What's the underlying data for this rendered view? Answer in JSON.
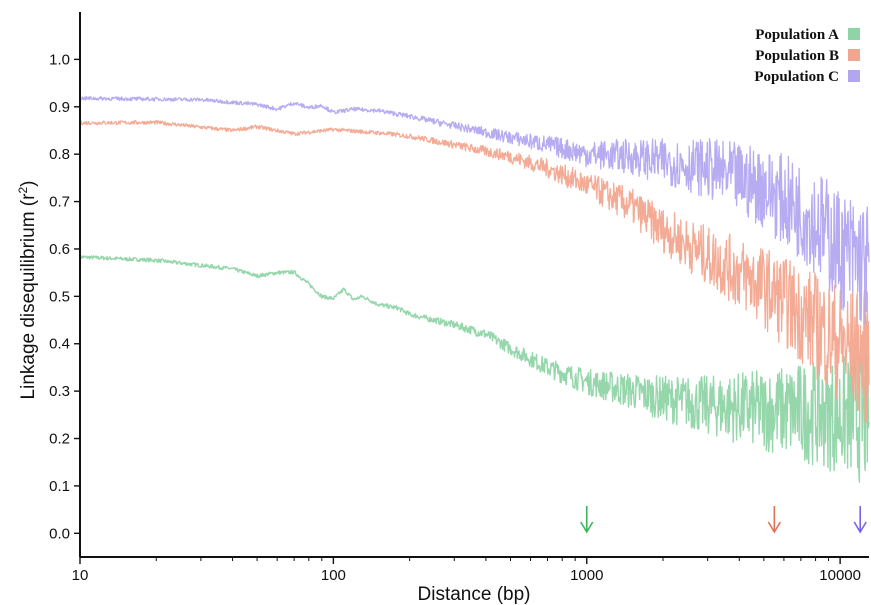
{
  "chart_data": {
    "type": "line",
    "xlabel": "Distance (bp)",
    "ylabel": "Linkage disequilibrium (r",
    "ylabel_sup": "2",
    "ylabel_end": ")",
    "x_scale": "log",
    "xlim": [
      10,
      13000
    ],
    "ylim": [
      -0.05,
      1.1
    ],
    "x_ticks": [
      10,
      100,
      1000,
      10000
    ],
    "x_tick_labels": [
      "10",
      "100",
      "1000",
      "10000"
    ],
    "y_ticks": [
      0.0,
      0.1,
      0.2,
      0.3,
      0.4,
      0.5,
      0.6,
      0.7,
      0.8,
      0.9,
      1.0
    ],
    "y_tick_labels": [
      "0.0",
      "0.1",
      "0.2",
      "0.3",
      "0.4",
      "0.5",
      "0.6",
      "0.7",
      "0.8",
      "0.9",
      "1.0"
    ],
    "grid": false,
    "legend_position": "top-right",
    "series": [
      {
        "name": "Population A",
        "color": "#8fd4a6",
        "x": [
          10,
          20,
          40,
          50,
          60,
          70,
          80,
          90,
          100,
          110,
          120,
          130,
          150,
          180,
          200,
          250,
          300,
          400,
          500,
          700,
          1000,
          1500,
          2000,
          3000,
          5000,
          8000,
          10000,
          13000
        ],
        "y": [
          0.583,
          0.576,
          0.558,
          0.543,
          0.55,
          0.551,
          0.526,
          0.5,
          0.495,
          0.515,
          0.493,
          0.5,
          0.483,
          0.475,
          0.462,
          0.45,
          0.44,
          0.42,
          0.39,
          0.35,
          0.32,
          0.3,
          0.285,
          0.27,
          0.26,
          0.255,
          0.25,
          0.24
        ]
      },
      {
        "name": "Population B",
        "color": "#f2a68f",
        "x": [
          10,
          20,
          40,
          50,
          70,
          100,
          150,
          200,
          300,
          500,
          700,
          1000,
          1500,
          2000,
          3000,
          5000,
          8000,
          10000,
          13000
        ],
        "y": [
          0.866,
          0.867,
          0.85,
          0.858,
          0.843,
          0.852,
          0.845,
          0.838,
          0.82,
          0.795,
          0.77,
          0.735,
          0.69,
          0.64,
          0.585,
          0.52,
          0.44,
          0.4,
          0.37
        ]
      },
      {
        "name": "Population C",
        "color": "#b3a6f0",
        "x": [
          10,
          30,
          50,
          60,
          70,
          80,
          90,
          100,
          120,
          150,
          200,
          300,
          500,
          700,
          1000,
          1500,
          2000,
          3000,
          5000,
          8000,
          10000,
          13000
        ],
        "y": [
          0.918,
          0.915,
          0.905,
          0.895,
          0.908,
          0.898,
          0.903,
          0.888,
          0.895,
          0.892,
          0.88,
          0.86,
          0.835,
          0.82,
          0.8,
          0.795,
          0.785,
          0.77,
          0.73,
          0.66,
          0.6,
          0.56
        ]
      }
    ],
    "arrows": [
      {
        "x": 1000,
        "color": "#3cb55e"
      },
      {
        "x": 5500,
        "color": "#e07155"
      },
      {
        "x": 12000,
        "color": "#7a63e6"
      }
    ]
  }
}
